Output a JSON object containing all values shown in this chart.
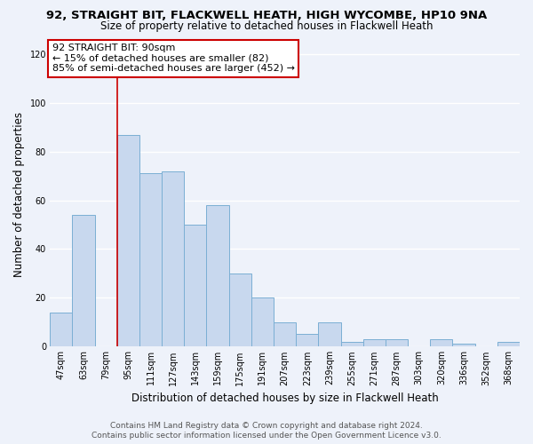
{
  "title1": "92, STRAIGHT BIT, FLACKWELL HEATH, HIGH WYCOMBE, HP10 9NA",
  "title2": "Size of property relative to detached houses in Flackwell Heath",
  "xlabel": "Distribution of detached houses by size in Flackwell Heath",
  "ylabel": "Number of detached properties",
  "categories": [
    "47sqm",
    "63sqm",
    "79sqm",
    "95sqm",
    "111sqm",
    "127sqm",
    "143sqm",
    "159sqm",
    "175sqm",
    "191sqm",
    "207sqm",
    "223sqm",
    "239sqm",
    "255sqm",
    "271sqm",
    "287sqm",
    "303sqm",
    "320sqm",
    "336sqm",
    "352sqm",
    "368sqm"
  ],
  "values": [
    14,
    54,
    0,
    87,
    71,
    72,
    50,
    58,
    30,
    20,
    10,
    5,
    10,
    2,
    3,
    3,
    0,
    3,
    1,
    0,
    2
  ],
  "bar_color": "#c8d8ee",
  "bar_edge_color": "#7bafd4",
  "vline_x_index": 3,
  "vline_color": "#cc0000",
  "annotation_line1": "92 STRAIGHT BIT: 90sqm",
  "annotation_line2": "← 15% of detached houses are smaller (82)",
  "annotation_line3": "85% of semi-detached houses are larger (452) →",
  "ylim": [
    0,
    125
  ],
  "yticks": [
    0,
    20,
    40,
    60,
    80,
    100,
    120
  ],
  "footer1": "Contains HM Land Registry data © Crown copyright and database right 2024.",
  "footer2": "Contains public sector information licensed under the Open Government Licence v3.0.",
  "background_color": "#eef2fa",
  "grid_color": "#ffffff",
  "title_fontsize": 9.5,
  "subtitle_fontsize": 8.5,
  "axis_label_fontsize": 8.5,
  "tick_fontsize": 7,
  "annotation_fontsize": 8,
  "footer_fontsize": 6.5
}
